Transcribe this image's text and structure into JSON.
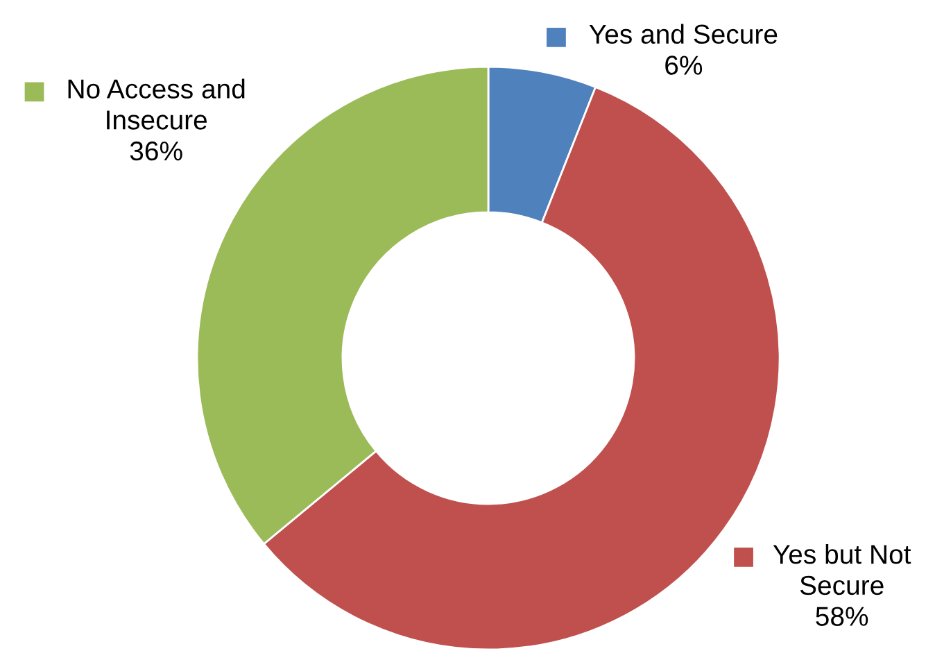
{
  "chart_data": {
    "type": "donut",
    "categories": [
      "Yes and Secure",
      "Yes but Not Secure",
      "No Access and Insecure"
    ],
    "values": [
      6,
      58,
      36
    ],
    "value_labels": [
      "6%",
      "58%",
      "36%"
    ],
    "colors": [
      "#4f81bd",
      "#c0504d",
      "#9bbb59"
    ],
    "legend": "top"
  }
}
